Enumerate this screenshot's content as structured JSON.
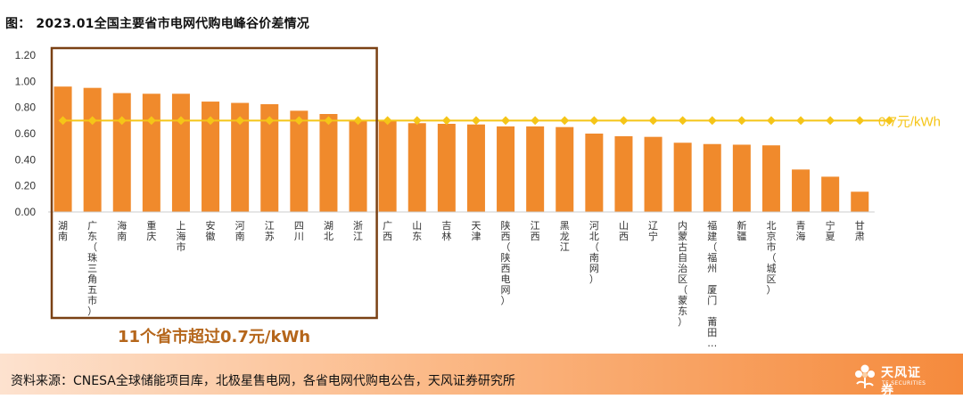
{
  "title": {
    "prefix": "图：",
    "text": "2023.01全国主要省市电网代购电峰谷价差情况"
  },
  "chart_data": {
    "type": "bar",
    "title": "2023.01全国主要省市电网代购电峰谷价差情况",
    "categories": [
      "湖南",
      "广东（珠三角五市）",
      "海南",
      "重庆",
      "上海市",
      "安徽",
      "河南",
      "江苏",
      "四川",
      "湖北",
      "浙江",
      "广西",
      "山东",
      "吉林",
      "天津",
      "陕西（陕西电网）",
      "江西",
      "黑龙江",
      "河北（南网）",
      "山西",
      "辽宁",
      "内蒙古自治区（蒙东）",
      "福建（福州 厦门 莆田…）",
      "新疆",
      "北京市（城区）",
      "青海",
      "宁夏",
      "甘肃"
    ],
    "category_lines": [
      [
        "湖",
        "南"
      ],
      [
        "广",
        "东",
        "（",
        "珠",
        "三",
        "角",
        "五",
        "市",
        "）"
      ],
      [
        "海",
        "南"
      ],
      [
        "重",
        "庆"
      ],
      [
        "上",
        "海",
        "市"
      ],
      [
        "安",
        "徽"
      ],
      [
        "河",
        "南"
      ],
      [
        "江",
        "苏"
      ],
      [
        "四",
        "川"
      ],
      [
        "湖",
        "北"
      ],
      [
        "浙",
        "江"
      ],
      [
        "广",
        "西"
      ],
      [
        "山",
        "东"
      ],
      [
        "吉",
        "林"
      ],
      [
        "天",
        "津"
      ],
      [
        "陕",
        "西",
        "（",
        "陕",
        "西",
        "电",
        "网",
        "）"
      ],
      [
        "江",
        "西"
      ],
      [
        "黑",
        "龙",
        "江"
      ],
      [
        "河",
        "北",
        "（",
        "南",
        "网",
        "）"
      ],
      [
        "山",
        "西"
      ],
      [
        "辽",
        "宁"
      ],
      [
        "内",
        "蒙",
        "古",
        "自",
        "治",
        "区",
        "（",
        "蒙",
        "东",
        "）"
      ],
      [
        "福",
        "建",
        "（",
        "福",
        "州",
        " ",
        "厦",
        "门",
        " ",
        "莆",
        "田",
        "…"
      ],
      [
        "新",
        "疆"
      ],
      [
        "北",
        "京",
        "市",
        "（",
        "城",
        "区",
        "）"
      ],
      [
        "青",
        "海"
      ],
      [
        "宁",
        "夏"
      ],
      [
        "甘",
        "肃"
      ]
    ],
    "values": [
      0.96,
      0.95,
      0.91,
      0.905,
      0.905,
      0.845,
      0.835,
      0.825,
      0.775,
      0.75,
      0.705,
      0.7,
      0.68,
      0.675,
      0.67,
      0.655,
      0.655,
      0.65,
      0.6,
      0.58,
      0.575,
      0.53,
      0.52,
      0.515,
      0.51,
      0.325,
      0.27,
      0.155
    ],
    "reference_line": {
      "value": 0.7,
      "label": "0.7元/kWh"
    },
    "ylim": [
      0,
      1.2
    ],
    "yticks": [
      "0.00",
      "0.20",
      "0.40",
      "0.60",
      "0.80",
      "1.00",
      "1.20"
    ],
    "grid": false,
    "annotation": {
      "text": "11个省市超过0.7元/kWh",
      "highlight_count": 11
    },
    "colors": {
      "bar": "#f08a2c",
      "line": "#f5c518",
      "annotation": "#b5661b",
      "box": "#7a4114"
    }
  },
  "footer": {
    "source": "资料来源：CNESA全球储能项目库，北极星售电网，各省电网代购电公告，天风证券研究所",
    "logo_cn": "天风证券",
    "logo_en": "TF SECURITIES",
    "logo_icon": "tf-flower-icon"
  }
}
